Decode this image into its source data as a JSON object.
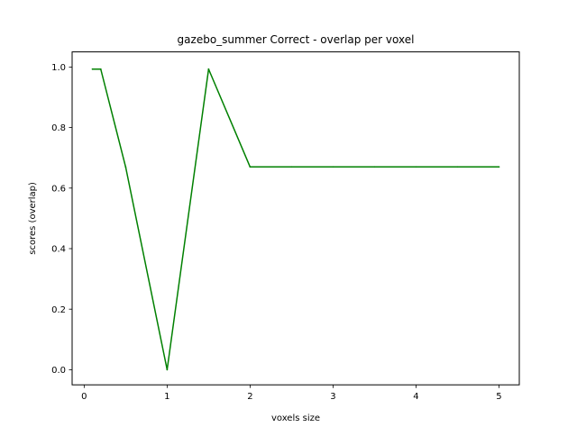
{
  "chart_data": {
    "type": "line",
    "title": "gazebo_summer Correct - overlap per voxel",
    "xlabel": "voxels size",
    "ylabel": "scores (overlap)",
    "xlim": [
      -0.145,
      5.245
    ],
    "ylim": [
      -0.05,
      1.05
    ],
    "xticks": [
      0,
      1,
      2,
      3,
      4,
      5
    ],
    "xtick_labels": [
      "0",
      "1",
      "2",
      "3",
      "4",
      "5"
    ],
    "yticks": [
      0.0,
      0.2,
      0.4,
      0.6,
      0.8,
      1.0
    ],
    "ytick_labels": [
      "0.0",
      "0.2",
      "0.4",
      "0.6",
      "0.8",
      "1.0"
    ],
    "grid": false,
    "series": [
      {
        "color": "#008000",
        "x": [
          0.1,
          0.2,
          0.5,
          1.0,
          1.5,
          2.0,
          2.5,
          3.0,
          3.5,
          4.0,
          4.5,
          5.0
        ],
        "y": [
          0.993,
          0.993,
          0.67,
          0.0,
          0.993,
          0.67,
          0.67,
          0.67,
          0.67,
          0.67,
          0.67,
          0.67
        ]
      }
    ]
  }
}
